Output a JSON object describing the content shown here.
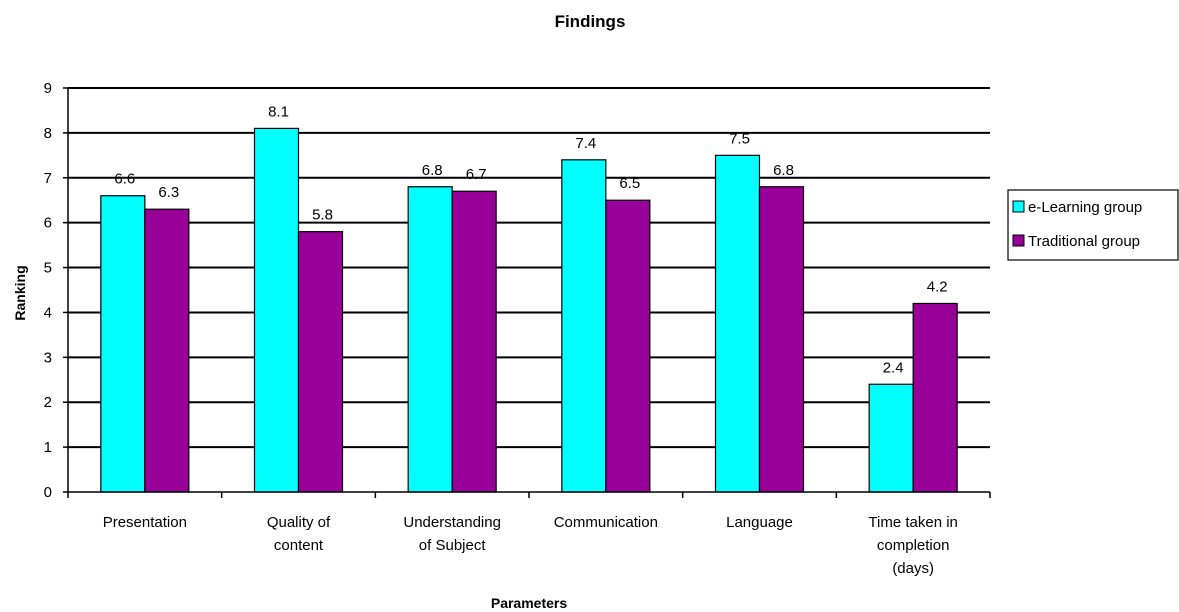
{
  "chart_data": {
    "type": "bar",
    "title": "Findings",
    "xlabel": "Parameters",
    "ylabel": "Ranking",
    "ylim": [
      0,
      9
    ],
    "yticks": [
      "0",
      "1",
      "2",
      "3",
      "4",
      "5",
      "6",
      "7",
      "8",
      "9"
    ],
    "grid": true,
    "legend_position": "right",
    "categories": [
      [
        "Presentation"
      ],
      [
        "Quality of",
        "content"
      ],
      [
        "Understanding",
        "of Subject"
      ],
      [
        "Communication"
      ],
      [
        "Language"
      ],
      [
        "Time taken in",
        "completion",
        "(days)"
      ]
    ],
    "series": [
      {
        "name": "e-Learning group",
        "color": "#00ffff",
        "values": [
          6.6,
          8.1,
          6.8,
          7.4,
          7.5,
          2.4
        ],
        "labels": [
          "6.6",
          "8.1",
          "6.8",
          "7.4",
          "7.5",
          "2.4"
        ]
      },
      {
        "name": "Traditional group",
        "color": "#990099",
        "values": [
          6.3,
          5.8,
          6.7,
          6.5,
          6.8,
          4.2
        ],
        "labels": [
          "6.3",
          "5.8",
          "6.7",
          "6.5",
          "6.8",
          "4.2"
        ]
      }
    ]
  }
}
